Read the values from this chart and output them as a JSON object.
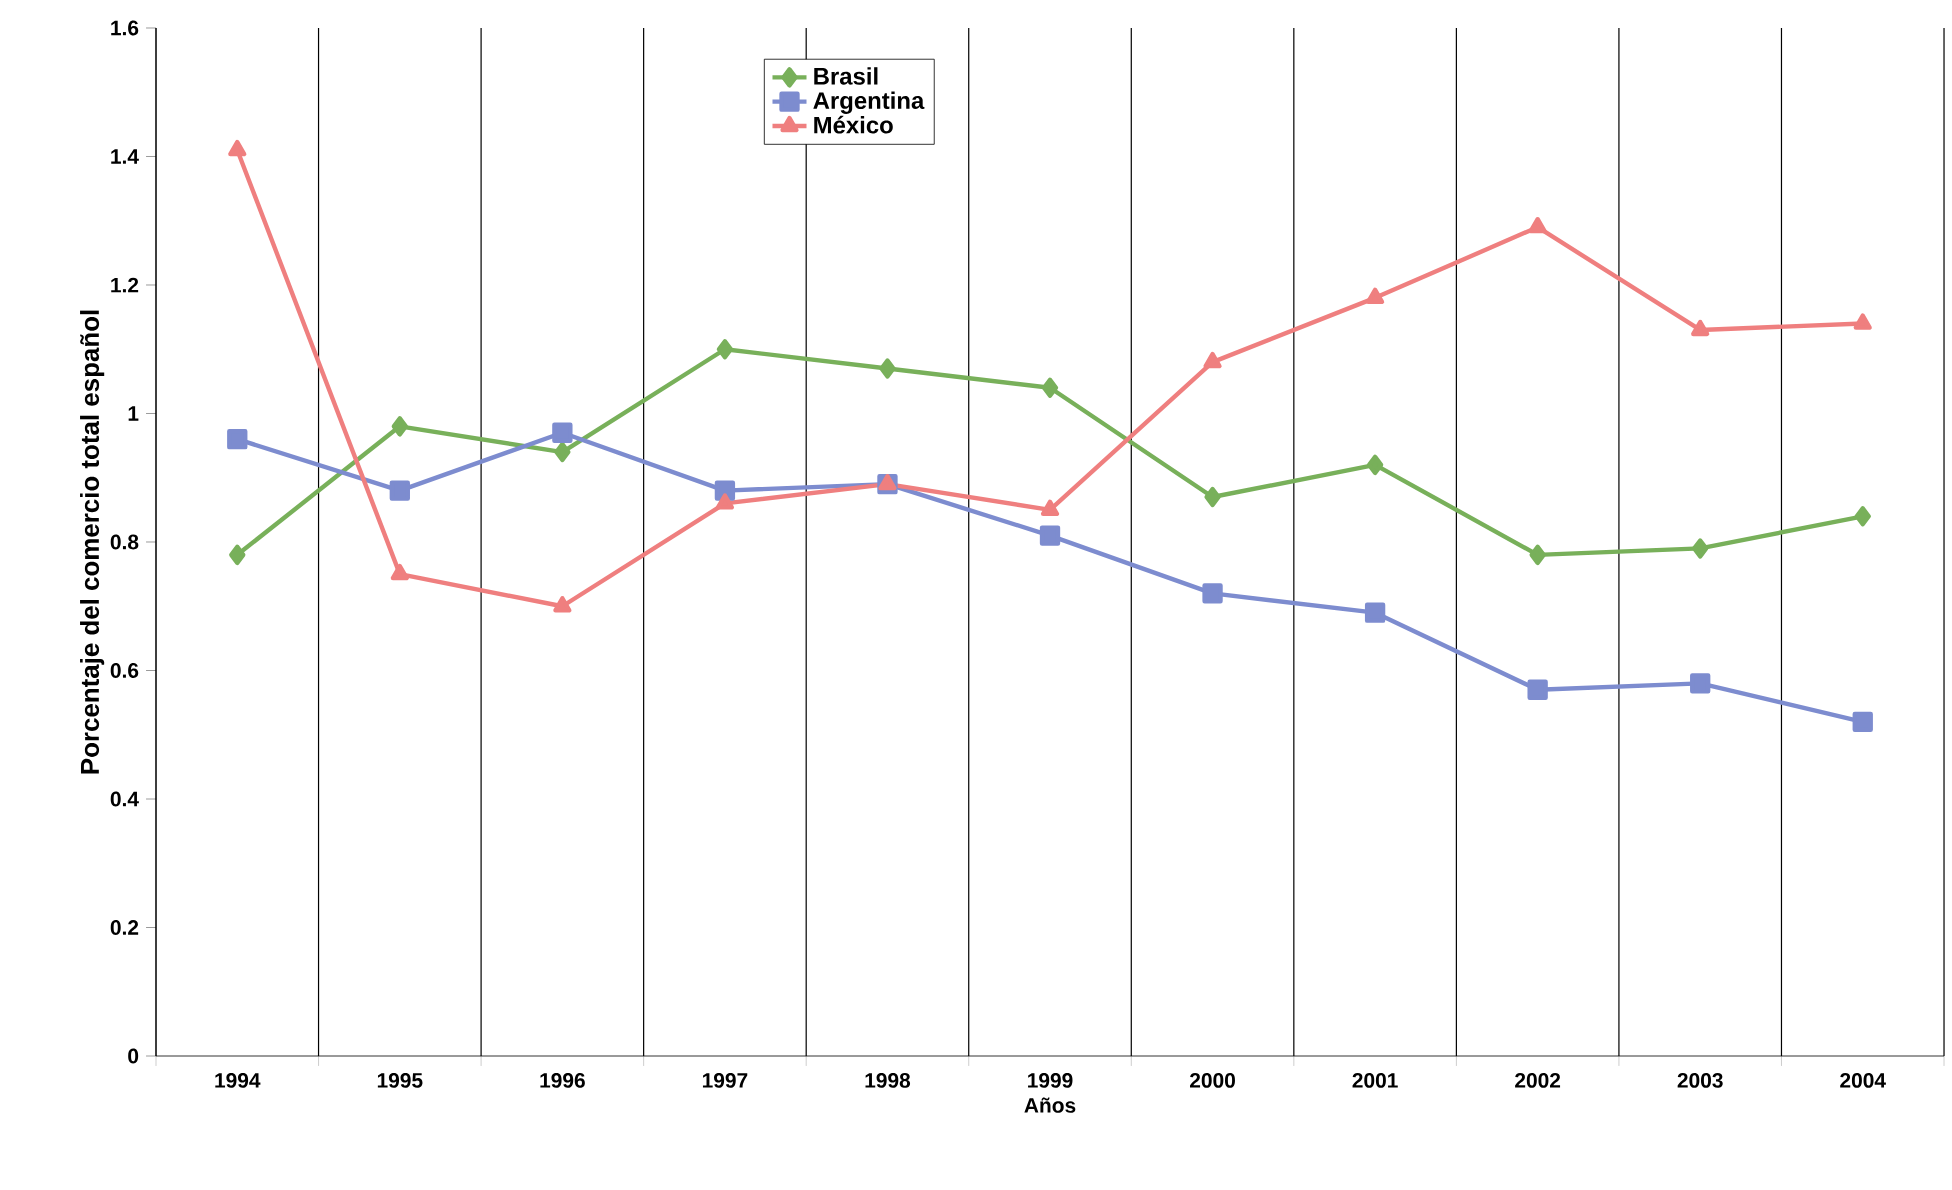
{
  "chart_data": {
    "type": "line",
    "xlabel": "Años",
    "ylabel": "Porcentaje del comercio total español",
    "categories": [
      "1994",
      "1995",
      "1996",
      "1997",
      "1998",
      "1999",
      "2000",
      "2001",
      "2002",
      "2003",
      "2004"
    ],
    "series": [
      {
        "name": "Brasil",
        "color": "#78b05a",
        "marker": "diamond",
        "values": [
          0.78,
          0.98,
          0.94,
          1.1,
          1.07,
          1.04,
          0.87,
          0.92,
          0.78,
          0.79,
          0.84
        ]
      },
      {
        "name": "Argentina",
        "color": "#7d8ccf",
        "marker": "square",
        "values": [
          0.96,
          0.88,
          0.97,
          0.88,
          0.89,
          0.81,
          0.72,
          0.69,
          0.57,
          0.58,
          0.52
        ]
      },
      {
        "name": "México",
        "color": "#ef7f7f",
        "marker": "triangle",
        "values": [
          1.41,
          0.75,
          0.7,
          0.86,
          0.89,
          0.85,
          1.08,
          1.18,
          1.29,
          1.13,
          1.14
        ]
      }
    ],
    "ylim": [
      0,
      1.6
    ],
    "yticks": [
      0,
      0.2,
      0.4,
      0.6,
      0.8,
      1,
      1.2,
      1.4,
      1.6
    ],
    "grid": "x",
    "legend": "top",
    "line_style": "solid"
  }
}
